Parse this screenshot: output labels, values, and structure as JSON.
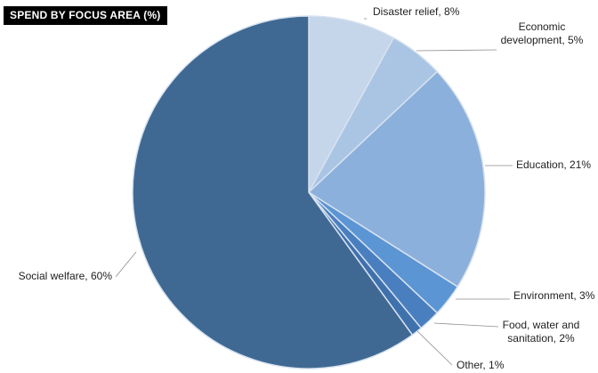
{
  "chart_data": {
    "type": "pie",
    "title": "SPEND BY FOCUS AREA (%)",
    "slices": [
      {
        "label": [
          "Disaster relief, 8%"
        ],
        "value": 8,
        "color": "#c5d5ea"
      },
      {
        "label": [
          "Economic",
          "development, 5%"
        ],
        "value": 5,
        "color": "#aac4e4"
      },
      {
        "label": [
          "Education, 21%"
        ],
        "value": 21,
        "color": "#8cb0dc"
      },
      {
        "label": [
          "Environment, 3%"
        ],
        "value": 3,
        "color": "#5b95d4"
      },
      {
        "label": [
          "Food, water and",
          "sanitation, 2%"
        ],
        "value": 2,
        "color": "#4a7fbf"
      },
      {
        "label": [
          "Other, 1%"
        ],
        "value": 1,
        "color": "#3f71ad"
      },
      {
        "label": [
          "Social welfare, 60%"
        ],
        "value": 60,
        "color": "#3f6993"
      }
    ]
  }
}
